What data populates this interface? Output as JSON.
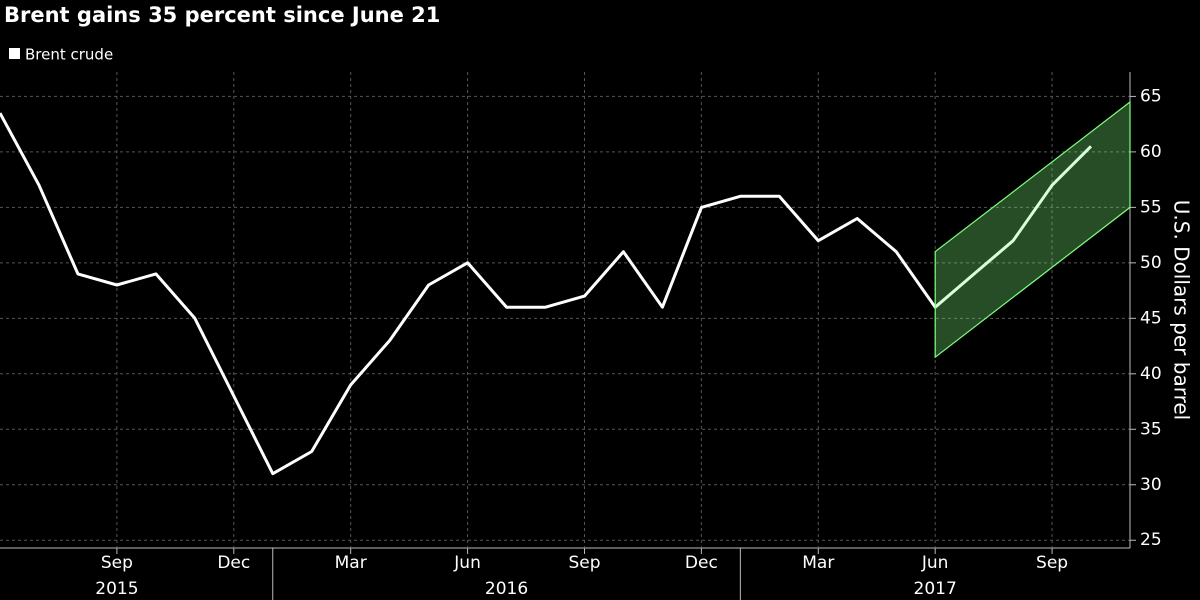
{
  "chart_data": {
    "type": "line",
    "title": "Brent gains 35 percent since June 21",
    "y_label": "U.S. Dollars per barrel",
    "x": [
      "2015-06",
      "2015-07",
      "2015-08",
      "2015-09",
      "2015-10",
      "2015-11",
      "2015-12",
      "2016-01",
      "2016-02",
      "2016-03",
      "2016-04",
      "2016-05",
      "2016-06",
      "2016-07",
      "2016-08",
      "2016-09",
      "2016-10",
      "2016-11",
      "2016-12",
      "2017-01",
      "2017-02",
      "2017-03",
      "2017-04",
      "2017-05",
      "2017-06",
      "2017-07",
      "2017-08",
      "2017-09",
      "2017-10"
    ],
    "series": [
      {
        "name": "Brent crude",
        "color": "#ffffff",
        "values": [
          63.5,
          57,
          49,
          48,
          49,
          45,
          38,
          31,
          33,
          39,
          43,
          48,
          50,
          46,
          46,
          47,
          51,
          46,
          55,
          56,
          56,
          52,
          54,
          51,
          46,
          49,
          52,
          57,
          60.5
        ]
      }
    ],
    "xlim": [
      "2015-06",
      "2017-11"
    ],
    "xticks": [
      {
        "value": "2015-09",
        "label": "Sep"
      },
      {
        "value": "2015-12",
        "label": "Dec"
      },
      {
        "value": "2016-03",
        "label": "Mar"
      },
      {
        "value": "2016-06",
        "label": "Jun"
      },
      {
        "value": "2016-09",
        "label": "Sep"
      },
      {
        "value": "2016-12",
        "label": "Dec"
      },
      {
        "value": "2017-03",
        "label": "Mar"
      },
      {
        "value": "2017-06",
        "label": "Jun"
      },
      {
        "value": "2017-09",
        "label": "Sep"
      }
    ],
    "year_labels": [
      {
        "value": "2015-09",
        "label": "2015"
      },
      {
        "value": "2016-07",
        "label": "2016"
      },
      {
        "value": "2017-06",
        "label": "2017"
      }
    ],
    "ylim": [
      24.3,
      67.2
    ],
    "yticks": [
      25,
      30,
      35,
      40,
      45,
      50,
      55,
      60,
      65
    ],
    "grid": true,
    "channel": {
      "x": [
        "2017-06",
        "2017-11"
      ],
      "lower": [
        41.5,
        55
      ],
      "upper": [
        51,
        64.5
      ],
      "color": "#7fff7f"
    }
  }
}
